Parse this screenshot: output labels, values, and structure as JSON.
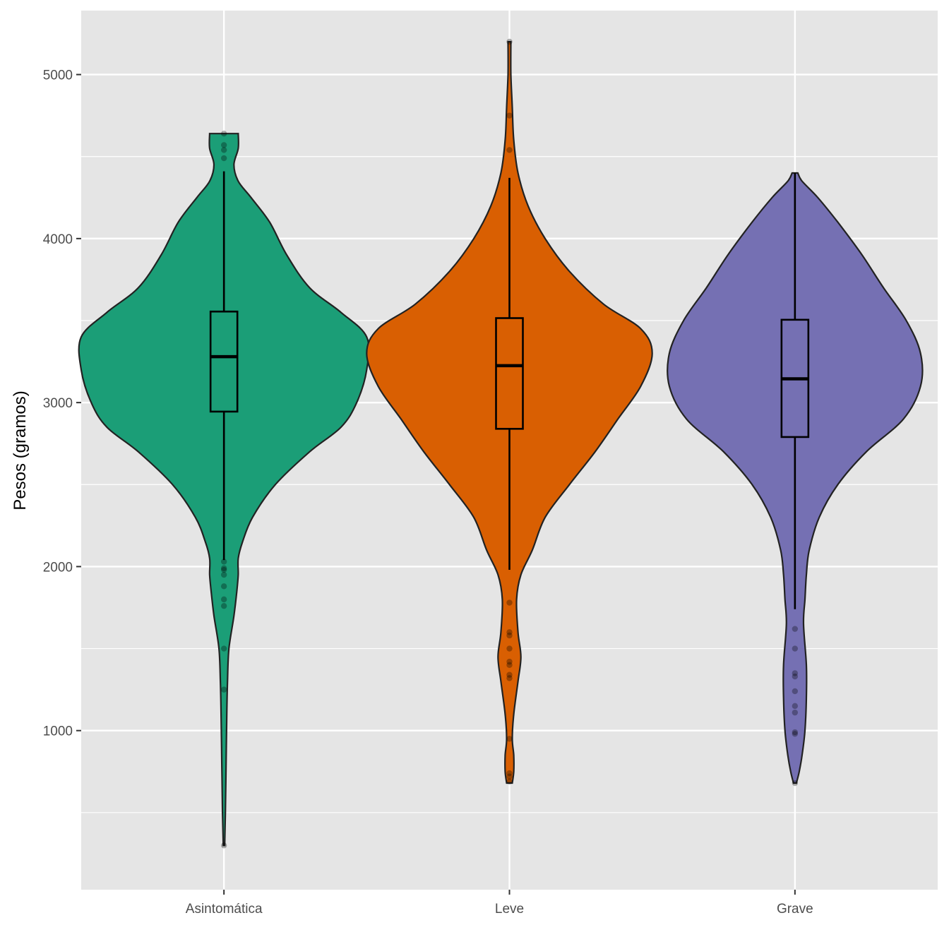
{
  "chart_data": {
    "type": "violin",
    "ylabel": "Pesos (gramos)",
    "xlabel": "",
    "ylim": [
      30,
      5390
    ],
    "yticks": [
      1000,
      2000,
      3000,
      4000,
      5000
    ],
    "ytick_labels": [
      "1000",
      "2000",
      "3000",
      "4000",
      "5000"
    ],
    "y_minor_gridlines": [
      500,
      1500,
      2500,
      3500,
      4500
    ],
    "grid": true,
    "panel_color": "#e5e5e5",
    "categories": [
      "Asintomática",
      "Leve",
      "Grave"
    ],
    "series": [
      {
        "category": "Asintomática",
        "color": "#1b9e77",
        "range": [
          300,
          4640
        ],
        "box": {
          "whisker_low": 2040,
          "q1": 2945,
          "median": 3280,
          "q3": 3555,
          "whisker_high": 4410
        },
        "outliers": [
          4640,
          4570,
          4540,
          4490,
          2030,
          1990,
          1980,
          1950,
          1880,
          1800,
          1760,
          1500,
          1250,
          300
        ],
        "density": [
          [
            300,
            0.005
          ],
          [
            500,
            0.01
          ],
          [
            800,
            0.015
          ],
          [
            1100,
            0.02
          ],
          [
            1300,
            0.025
          ],
          [
            1500,
            0.035
          ],
          [
            1700,
            0.07
          ],
          [
            1850,
            0.09
          ],
          [
            1950,
            0.1
          ],
          [
            2050,
            0.1
          ],
          [
            2150,
            0.13
          ],
          [
            2300,
            0.2
          ],
          [
            2500,
            0.36
          ],
          [
            2700,
            0.6
          ],
          [
            2850,
            0.82
          ],
          [
            3000,
            0.93
          ],
          [
            3200,
            1.0
          ],
          [
            3400,
            1.0
          ],
          [
            3550,
            0.82
          ],
          [
            3700,
            0.6
          ],
          [
            3900,
            0.44
          ],
          [
            4100,
            0.32
          ],
          [
            4250,
            0.19
          ],
          [
            4350,
            0.1
          ],
          [
            4450,
            0.07
          ],
          [
            4550,
            0.1
          ],
          [
            4640,
            0.1
          ]
        ]
      },
      {
        "category": "Leve",
        "color": "#d95f02",
        "range": [
          680,
          5200
        ],
        "box": {
          "whisker_low": 1980,
          "q1": 2840,
          "median": 3225,
          "q3": 3515,
          "whisker_high": 4370
        },
        "outliers": [
          5200,
          4750,
          4540,
          1780,
          1600,
          1580,
          1500,
          1420,
          1400,
          1340,
          1320,
          950,
          740,
          720,
          690
        ],
        "density": [
          [
            680,
            0.02
          ],
          [
            750,
            0.03
          ],
          [
            850,
            0.03
          ],
          [
            950,
            0.02
          ],
          [
            1100,
            0.03
          ],
          [
            1300,
            0.06
          ],
          [
            1450,
            0.08
          ],
          [
            1600,
            0.06
          ],
          [
            1800,
            0.05
          ],
          [
            1950,
            0.08
          ],
          [
            2100,
            0.16
          ],
          [
            2300,
            0.25
          ],
          [
            2500,
            0.42
          ],
          [
            2700,
            0.6
          ],
          [
            2900,
            0.76
          ],
          [
            3100,
            0.92
          ],
          [
            3300,
            1.0
          ],
          [
            3450,
            0.92
          ],
          [
            3600,
            0.66
          ],
          [
            3800,
            0.42
          ],
          [
            4000,
            0.25
          ],
          [
            4200,
            0.13
          ],
          [
            4400,
            0.06
          ],
          [
            4600,
            0.03
          ],
          [
            4800,
            0.02
          ],
          [
            5000,
            0.01
          ],
          [
            5200,
            0.01
          ]
        ]
      },
      {
        "category": "Grave",
        "color": "#7570b3",
        "range": [
          680,
          4400
        ],
        "box": {
          "whisker_low": 1740,
          "q1": 2790,
          "median": 3145,
          "q3": 3505,
          "whisker_high": 4400
        },
        "outliers": [
          1620,
          1500,
          1350,
          1330,
          1240,
          1150,
          1110,
          990,
          980,
          680
        ],
        "density": [
          [
            680,
            0.01
          ],
          [
            750,
            0.03
          ],
          [
            850,
            0.05
          ],
          [
            1000,
            0.07
          ],
          [
            1200,
            0.08
          ],
          [
            1400,
            0.08
          ],
          [
            1650,
            0.06
          ],
          [
            1800,
            0.07
          ],
          [
            1950,
            0.08
          ],
          [
            2100,
            0.1
          ],
          [
            2300,
            0.17
          ],
          [
            2500,
            0.3
          ],
          [
            2700,
            0.5
          ],
          [
            2900,
            0.76
          ],
          [
            3100,
            0.88
          ],
          [
            3300,
            0.88
          ],
          [
            3500,
            0.78
          ],
          [
            3700,
            0.62
          ],
          [
            3900,
            0.47
          ],
          [
            4100,
            0.3
          ],
          [
            4250,
            0.16
          ],
          [
            4350,
            0.05
          ],
          [
            4400,
            0.02
          ]
        ]
      }
    ]
  }
}
